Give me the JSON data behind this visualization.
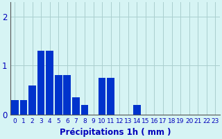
{
  "values": [
    0.3,
    0.3,
    0.6,
    1.3,
    1.3,
    0.8,
    0.8,
    0.35,
    0.2,
    0.0,
    0.75,
    0.75,
    0.0,
    0.0,
    0.2,
    0.0,
    0.0,
    0.0,
    0.0,
    0.0,
    0.0,
    0.0,
    0.0,
    0.0
  ],
  "bar_color": "#0033cc",
  "background_color": "#d6f4f4",
  "grid_color": "#aacece",
  "xlabel": "Précipitations 1h ( mm )",
  "xlabel_color": "#0000bb",
  "xlabel_fontsize": 8.5,
  "tick_color": "#0000bb",
  "xtick_fontsize": 6.5,
  "ytick_fontsize": 8.5,
  "ytick_values": [
    0,
    1,
    2
  ],
  "ylim": [
    0,
    2.3
  ],
  "xlim": [
    -0.5,
    23.5
  ],
  "bar_width": 0.85,
  "figsize": [
    3.2,
    2.0
  ],
  "dpi": 100
}
